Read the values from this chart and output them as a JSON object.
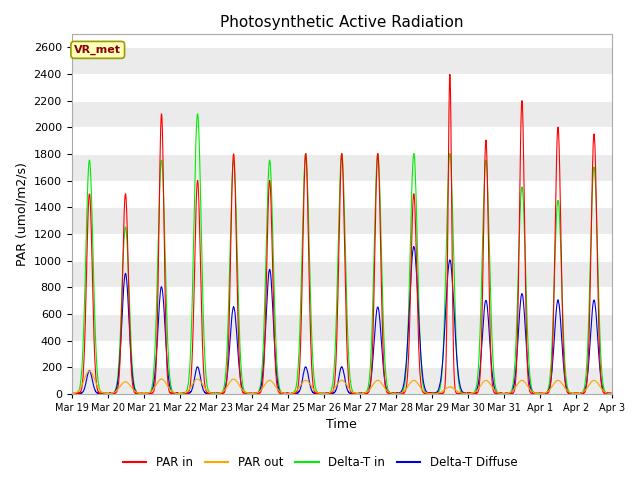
{
  "title": "Photosynthetic Active Radiation",
  "xlabel": "Time",
  "ylabel": "PAR (umol/m2/s)",
  "ylim": [
    0,
    2700
  ],
  "yticks": [
    0,
    200,
    400,
    600,
    800,
    1000,
    1200,
    1400,
    1600,
    1800,
    2000,
    2200,
    2400,
    2600
  ],
  "bg_color": "#ffffff",
  "plot_bg_color": "#ffffff",
  "grid_color": "#d0d0d0",
  "annotation_text": "VR_met",
  "annotation_box_color": "#ffffbb",
  "annotation_text_color": "#8b0000",
  "annotation_edge_color": "#999900",
  "colors": {
    "PAR_in": "#ff0000",
    "PAR_out": "#ffa500",
    "Delta_T_in": "#00ee00",
    "Delta_T_Diffuse": "#0000dd"
  },
  "legend_labels": [
    "PAR in",
    "PAR out",
    "Delta-T in",
    "Delta-T Diffuse"
  ],
  "num_days": 15,
  "x_tick_labels": [
    "Mar 19",
    "Mar 20",
    "Mar 21",
    "Mar 22",
    "Mar 23",
    "Mar 24",
    "Mar 25",
    "Mar 26",
    "Mar 27",
    "Mar 28",
    "Mar 29",
    "Mar 30",
    "Mar 31",
    "Apr 1",
    "Apr 2",
    "Apr 3"
  ],
  "day_peaks_PAR_in": [
    1500,
    1500,
    2100,
    1600,
    1800,
    1600,
    1800,
    1800,
    1800,
    1500,
    2400,
    1900,
    2200,
    2000,
    1950
  ],
  "day_peaks_PAR_out": [
    170,
    90,
    110,
    110,
    110,
    100,
    100,
    100,
    100,
    100,
    50,
    100,
    100,
    100,
    100
  ],
  "day_peaks_Delta_T_in": [
    1750,
    1250,
    1750,
    2100,
    1750,
    1750,
    1800,
    1800,
    1800,
    1800,
    1800,
    1750,
    1550,
    1450,
    1700
  ],
  "day_peaks_Delta_T_Diffuse": [
    170,
    900,
    800,
    200,
    650,
    930,
    200,
    200,
    650,
    1100,
    1000,
    700,
    750,
    700,
    700
  ],
  "par_in_widths": [
    0.08,
    0.08,
    0.07,
    0.08,
    0.08,
    0.08,
    0.08,
    0.08,
    0.08,
    0.08,
    0.05,
    0.07,
    0.07,
    0.08,
    0.08
  ],
  "par_out_widths": [
    0.15,
    0.15,
    0.15,
    0.15,
    0.15,
    0.15,
    0.15,
    0.15,
    0.15,
    0.15,
    0.15,
    0.15,
    0.15,
    0.15,
    0.15
  ],
  "dtin_widths": [
    0.1,
    0.1,
    0.1,
    0.1,
    0.1,
    0.1,
    0.1,
    0.1,
    0.1,
    0.1,
    0.1,
    0.1,
    0.1,
    0.1,
    0.1
  ],
  "dtdiff_widths": [
    0.08,
    0.1,
    0.1,
    0.08,
    0.1,
    0.1,
    0.08,
    0.08,
    0.1,
    0.12,
    0.12,
    0.1,
    0.1,
    0.1,
    0.1
  ]
}
